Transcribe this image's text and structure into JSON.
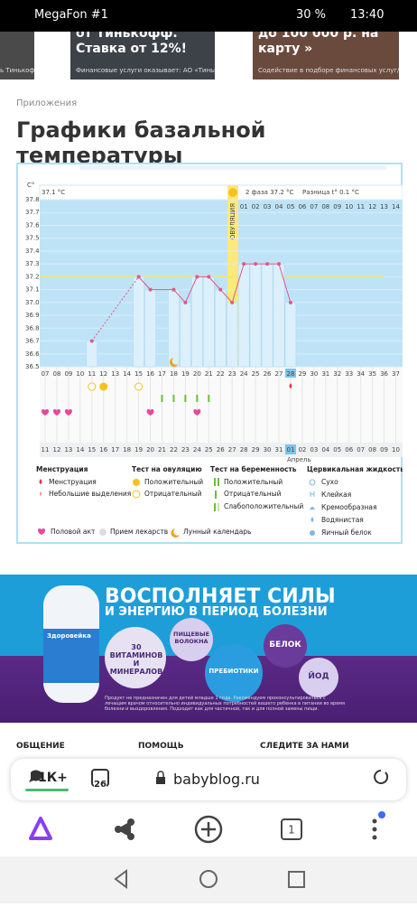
{
  "status_bar": {
    "carrier": "MegaFon #1",
    "battery": "30 %",
    "time": "13:40"
  },
  "carousel": [
    {
      "title": "ь Тинькофф"
    },
    {
      "title": "от Тинькофф. Ставка от 12%!",
      "caption": "Финансовые услуги оказывает: АО «Тинькофф"
    },
    {
      "title": "до 100 000 р. на карту »",
      "caption": "Содействие в подборе финансовых услуг/орг"
    }
  ],
  "breadcrumb": "Приложения",
  "title": "Графики базальной температуры",
  "bbt_chart": {
    "unit_label": "C°",
    "phase1_label": "37.1 °C",
    "phase2_label": "2 фаза 37.2 °C",
    "difference_label": "Разница t° 0.1 °C",
    "ovulation_label": "ОВУЛЯЦИЯ",
    "ylim": [
      36.5,
      37.8
    ],
    "yticks": [
      37.8,
      37.7,
      37.6,
      37.5,
      37.4,
      37.3,
      37.2,
      37.1,
      {
        "value": 37,
        "label": "37.0"
      },
      36.9,
      36.8,
      36.7,
      36.6,
      36.5
    ],
    "coverline": 37.2,
    "phase2_days": [
      "01",
      "02",
      "03",
      "04",
      "05",
      "06",
      "07",
      "08",
      "09",
      "10",
      "11",
      "12",
      "13",
      "14"
    ],
    "cycle_days": [
      "07",
      "08",
      "09",
      "10",
      "11",
      "12",
      "13",
      "14",
      "15",
      "16",
      "17",
      "18",
      "19",
      "20",
      "21",
      "22",
      "23",
      "24",
      "25",
      "26",
      "27",
      "28",
      "29",
      "30",
      "31",
      "32",
      "33",
      "34",
      "35",
      "36",
      "37"
    ],
    "dates": [
      "11",
      "12",
      "13",
      "14",
      "15",
      "16",
      "17",
      "18",
      "19",
      "20",
      "21",
      "22",
      "23",
      "24",
      "25",
      "26",
      "27",
      "28",
      "29",
      "30",
      "31",
      "01",
      "02",
      "03",
      "04",
      "05",
      "06",
      "07",
      "08",
      "09",
      "10"
    ],
    "month_label": "Апрель",
    "temperatures": [
      null,
      null,
      null,
      null,
      36.7,
      null,
      null,
      null,
      37.2,
      37.1,
      null,
      37.1,
      37.0,
      37.2,
      37.2,
      37.1,
      37.0,
      37.3,
      37.3,
      37.3,
      37.3,
      37.0,
      null,
      null,
      null,
      null,
      null,
      null,
      null,
      null,
      null
    ],
    "legend": {
      "menstruation": {
        "title": "Менструация",
        "items": [
          "Менструация",
          "Небольшие выделения"
        ]
      },
      "ovulation_test": {
        "title": "Тест на овуляцию",
        "items": [
          "Положительный",
          "Отрицательный"
        ]
      },
      "pregnancy_test": {
        "title": "Тест на беременность",
        "items": [
          "Положительный",
          "Отрицательный",
          "Слабоположительный"
        ]
      },
      "cervical_fluid": {
        "title": "Цервикальная жидкость",
        "items": [
          "Сухо",
          "Клейкая",
          "Кремообразная",
          "Водянистая",
          "Яичный белок"
        ]
      },
      "other": [
        "Половой акт",
        "Прием лекарств",
        "Лунный календарь"
      ]
    }
  },
  "ad": {
    "headline": "ВОСПОЛНЯЕТ СИЛЫ",
    "subheadline": "И ЭНЕРГИЮ В ПЕРИОД БОЛЕЗНИ",
    "bubbles": [
      "30 ВИТАМИНОВ И МИНЕРАЛОВ",
      "ПИЩЕВЫЕ ВОЛОКНА",
      "ПРЕБИОТИКИ",
      "БЕЛОК",
      "ЙОД"
    ],
    "product": "Здоровейка",
    "disclaimer": "Продукт не предназначен для детей младше 1 года. Рекомендуем проконсультироваться с лечащим врачом относительно индивидуальных потребностей вашего ребенка в питании во время болезни и выздоровления. Подходит как для частичной, так и для полной замены пищи."
  },
  "footer": [
    "ОБЩЕНИЕ",
    "ПОМОЩЬ",
    "СЛЕДИТЕ ЗА НАМИ"
  ],
  "browser": {
    "comments": "1К+",
    "tabs_badge": "26",
    "url": "babyblog.ru",
    "tab_count": "1"
  }
}
